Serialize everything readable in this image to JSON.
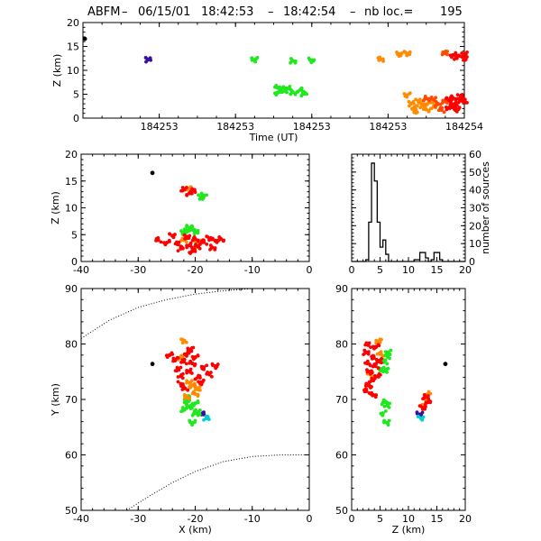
{
  "title": {
    "prefix": "ABFM",
    "date": "06/15/01",
    "time_start": "18:42:53",
    "time_end": "18:42:54",
    "count_label": "nb loc.=",
    "count": "195"
  },
  "colors": {
    "first": "#3a0fa0",
    "cyan": "#00d0d0",
    "green": "#1fe81f",
    "orange": "#ff8c00",
    "orange_red": "#ff4a00",
    "red": "#ff0000",
    "marker": "#000000",
    "axis": "#000000"
  },
  "chart_data": [
    {
      "id": "time_height",
      "type": "scatter",
      "xlabel": "Time (UT)",
      "ylabel": "Z (km)",
      "xlim": [
        184253.0,
        184254.0
      ],
      "ylim": [
        0,
        20
      ],
      "xticks": [
        184253.2,
        184253.4,
        184253.6,
        184253.8,
        184254.0
      ],
      "xticklabels": [
        "184253",
        "184253",
        "184253",
        "184253",
        "184254"
      ],
      "yticks": [
        0,
        5,
        10,
        15,
        20
      ],
      "marker_point": {
        "x": 184253.005,
        "y": 16.6,
        "color": "#000000"
      },
      "series": [
        {
          "color": "#3a0fa0",
          "points": [
            [
              184253.17,
              12.2
            ]
          ]
        },
        {
          "color": "#1fe81f",
          "points": [
            [
              184253.45,
              12.2
            ],
            [
              184253.51,
              6.4
            ],
            [
              184253.51,
              5.3
            ],
            [
              184253.52,
              6.1
            ],
            [
              184253.53,
              5.7
            ],
            [
              184253.54,
              6.2
            ],
            [
              184253.55,
              5.4
            ],
            [
              184253.55,
              12.0
            ],
            [
              184253.57,
              5.9
            ],
            [
              184253.6,
              12.1
            ],
            [
              184253.58,
              5.1
            ]
          ]
        },
        {
          "color": "#ff8c00",
          "points": [
            [
              184253.78,
              12.3
            ],
            [
              184253.83,
              13.4
            ],
            [
              184253.85,
              4.8
            ],
            [
              184253.86,
              3.0
            ],
            [
              184253.87,
              2.2
            ],
            [
              184253.87,
              1.5
            ],
            [
              184253.88,
              3.6
            ],
            [
              184253.89,
              2.6
            ],
            [
              184253.9,
              1.8
            ],
            [
              184253.91,
              3.3
            ],
            [
              184253.92,
              2.4
            ],
            [
              184253.85,
              13.5
            ]
          ]
        },
        {
          "color": "#ff4a00",
          "points": [
            [
              184253.9,
              4.1
            ],
            [
              184253.92,
              3.9
            ],
            [
              184253.93,
              2.9
            ],
            [
              184253.94,
              1.7
            ],
            [
              184253.95,
              3.5
            ],
            [
              184253.95,
              13.6
            ]
          ]
        },
        {
          "color": "#ff0000",
          "points": [
            [
              184253.96,
              3.8
            ],
            [
              184253.97,
              4.2
            ],
            [
              184253.97,
              2.5
            ],
            [
              184253.98,
              3.1
            ],
            [
              184253.99,
              4.0
            ],
            [
              184254.0,
              3.6
            ],
            [
              184253.96,
              2.2
            ],
            [
              184253.98,
              1.8
            ],
            [
              184253.97,
              13.2
            ],
            [
              184253.98,
              12.7
            ],
            [
              184254.0,
              13.4
            ],
            [
              184254.0,
              12.5
            ],
            [
              184253.99,
              4.6
            ]
          ]
        }
      ]
    },
    {
      "id": "x_height",
      "type": "scatter",
      "xlabel": "",
      "ylabel": "Z (km)",
      "xlim": [
        -40,
        0
      ],
      "ylim": [
        0,
        20
      ],
      "xticks": [
        -40,
        -30,
        -20,
        -10,
        0
      ],
      "yticks": [
        0,
        5,
        10,
        15,
        20
      ],
      "marker_point": {
        "x": -27.5,
        "y": 16.5,
        "color": "#000000"
      },
      "series": [
        {
          "color": "#1fe81f",
          "points": [
            [
              -21.5,
              5.8
            ],
            [
              -20.5,
              6.1
            ],
            [
              -21.0,
              6.3
            ],
            [
              -19.0,
              12.0
            ],
            [
              -18.5,
              12.3
            ],
            [
              -20.0,
              5.5
            ],
            [
              -22.0,
              5.4
            ]
          ]
        },
        {
          "color": "#ff8c00",
          "points": [
            [
              -22.0,
              4.0
            ],
            [
              -20.0,
              2.5
            ],
            [
              -21.0,
              13.6
            ],
            [
              -19.5,
              3.6
            ]
          ]
        },
        {
          "color": "#ff0000",
          "points": [
            [
              -26.5,
              4.0
            ],
            [
              -25.0,
              3.5
            ],
            [
              -24.0,
              4.8
            ],
            [
              -23.0,
              3.2
            ],
            [
              -22.5,
              2.4
            ],
            [
              -21.5,
              4.6
            ],
            [
              -21.0,
              3.0
            ],
            [
              -20.5,
              1.9
            ],
            [
              -20.0,
              4.2
            ],
            [
              -19.5,
              2.8
            ],
            [
              -18.5,
              3.6
            ],
            [
              -17.5,
              4.3
            ],
            [
              -16.5,
              3.9
            ],
            [
              -17.0,
              2.6
            ],
            [
              -15.5,
              4.2
            ],
            [
              -22.0,
              13.5
            ],
            [
              -21.0,
              12.7
            ],
            [
              -20.5,
              13.2
            ]
          ]
        }
      ]
    },
    {
      "id": "height_histogram",
      "type": "bar",
      "xlabel": "",
      "ylabel": "number of sources",
      "xlim": [
        0,
        20
      ],
      "ylim": [
        0,
        60
      ],
      "xticks": [
        0,
        5,
        10,
        15,
        20
      ],
      "yticks": [
        0,
        10,
        20,
        30,
        40,
        50,
        60
      ],
      "bin_width": 0.5,
      "bin_start": 0,
      "values": [
        0,
        0,
        0,
        0,
        0,
        1,
        22,
        55,
        45,
        22,
        8,
        12,
        4,
        0,
        0,
        0,
        0,
        0,
        0,
        0,
        0,
        0,
        1,
        1,
        5,
        5,
        2,
        0,
        1,
        5,
        5,
        1,
        0,
        0,
        0,
        0,
        0,
        0,
        0,
        0
      ]
    },
    {
      "id": "plan_view",
      "type": "scatter",
      "xlabel": "X (km)",
      "ylabel": "Y (km)",
      "xlim": [
        -40,
        0
      ],
      "ylim": [
        50,
        90
      ],
      "xticks": [
        -40,
        -30,
        -20,
        -10,
        0
      ],
      "yticks": [
        50,
        60,
        70,
        80,
        90
      ],
      "marker_point": {
        "x": -27.5,
        "y": 76.4,
        "color": "#000000"
      },
      "series": [
        {
          "color": "#3a0fa0",
          "points": [
            [
              -18.5,
              67.3
            ]
          ]
        },
        {
          "color": "#00d0d0",
          "points": [
            [
              -18.0,
              66.6
            ]
          ]
        },
        {
          "color": "#1fe81f",
          "points": [
            [
              -21.5,
              69.5
            ],
            [
              -21.0,
              68.7
            ],
            [
              -22.0,
              68.2
            ],
            [
              -20.0,
              67.5
            ],
            [
              -19.5,
              67.7
            ],
            [
              -20.5,
              65.8
            ],
            [
              -21.5,
              70.3
            ],
            [
              -20.0,
              69.3
            ]
          ]
        },
        {
          "color": "#ff8c00",
          "points": [
            [
              -22.0,
              80.5
            ],
            [
              -20.5,
              72.5
            ],
            [
              -20.0,
              71.0
            ],
            [
              -21.0,
              73.0
            ],
            [
              -19.5,
              72.0
            ],
            [
              -22.5,
              77.5
            ],
            [
              -21.5,
              70.5
            ]
          ]
        },
        {
          "color": "#ff0000",
          "points": [
            [
              -24.5,
              78.0
            ],
            [
              -23.5,
              77.2
            ],
            [
              -23.0,
              75.5
            ],
            [
              -22.5,
              74.2
            ],
            [
              -22.0,
              76.8
            ],
            [
              -21.5,
              78.2
            ],
            [
              -21.0,
              75.1
            ],
            [
              -20.5,
              76.5
            ],
            [
              -20.0,
              77.6
            ],
            [
              -19.5,
              74.0
            ],
            [
              -19.0,
              73.1
            ],
            [
              -18.5,
              75.8
            ],
            [
              -17.5,
              74.5
            ],
            [
              -16.5,
              76.0
            ],
            [
              -22.5,
              72.8
            ],
            [
              -21.8,
              72.0
            ],
            [
              -20.8,
              79.0
            ]
          ]
        }
      ],
      "boundary_upper": [
        [
          -40,
          81.0
        ],
        [
          -35,
          84.3
        ],
        [
          -30,
          86.6
        ],
        [
          -25,
          88.0
        ],
        [
          -20,
          89.0
        ],
        [
          -15,
          89.6
        ],
        [
          -10,
          90.0
        ]
      ],
      "boundary_lower": [
        [
          -32,
          50.0
        ],
        [
          -28,
          52.6
        ],
        [
          -24,
          55.0
        ],
        [
          -20,
          57.0
        ],
        [
          -15,
          58.8
        ],
        [
          -10,
          59.7
        ],
        [
          -5,
          60.0
        ],
        [
          0,
          60.0
        ]
      ]
    },
    {
      "id": "height_y",
      "type": "scatter",
      "xlabel": "Z (km)",
      "ylabel": "",
      "xlim": [
        0,
        20
      ],
      "ylim": [
        50,
        90
      ],
      "xticks": [
        0,
        5,
        10,
        15,
        20
      ],
      "yticks": [
        50,
        60,
        70,
        80,
        90
      ],
      "marker_point": {
        "x": 16.5,
        "y": 76.4,
        "color": "#000000"
      },
      "series": [
        {
          "color": "#3a0fa0",
          "points": [
            [
              12.0,
              67.3
            ]
          ]
        },
        {
          "color": "#00d0d0",
          "points": [
            [
              12.2,
              66.6
            ]
          ]
        },
        {
          "color": "#1fe81f",
          "points": [
            [
              5.8,
              69.5
            ],
            [
              6.3,
              68.9
            ],
            [
              5.5,
              67.5
            ],
            [
              6.2,
              65.8
            ],
            [
              5.8,
              76.8
            ],
            [
              6.3,
              77.8
            ],
            [
              5.2,
              75.5
            ],
            [
              6.0,
              75.2
            ],
            [
              6.5,
              78.5
            ]
          ]
        },
        {
          "color": "#ff8c00",
          "points": [
            [
              4.8,
              80.5
            ],
            [
              13.5,
              71.0
            ],
            [
              13.2,
              70.0
            ],
            [
              12.6,
              69.0
            ],
            [
              5.0,
              78.2
            ],
            [
              3.3,
              74.5
            ]
          ]
        },
        {
          "color": "#ff0000",
          "points": [
            [
              2.5,
              78.5
            ],
            [
              2.8,
              76.5
            ],
            [
              3.2,
              75.0
            ],
            [
              3.6,
              73.5
            ],
            [
              3.9,
              77.5
            ],
            [
              4.2,
              76.0
            ],
            [
              4.6,
              74.2
            ],
            [
              4.9,
              77.0
            ],
            [
              3.0,
              72.5
            ],
            [
              2.6,
              71.5
            ],
            [
              4.3,
              79.5
            ],
            [
              13.0,
              70.5
            ],
            [
              12.5,
              68.5
            ],
            [
              13.5,
              69.5
            ],
            [
              3.8,
              70.8
            ],
            [
              2.9,
              79.8
            ]
          ]
        }
      ]
    }
  ]
}
